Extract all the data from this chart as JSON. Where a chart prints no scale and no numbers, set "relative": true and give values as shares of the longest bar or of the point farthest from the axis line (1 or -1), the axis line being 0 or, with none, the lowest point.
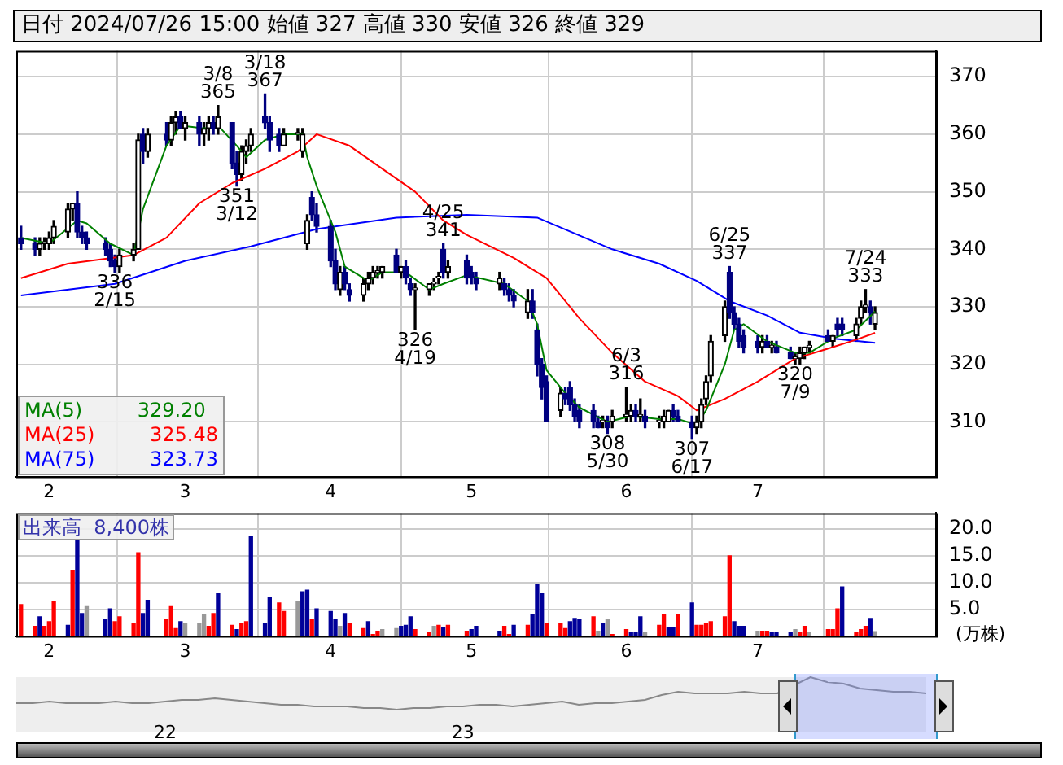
{
  "chart_data": [
    {
      "type": "candlestick",
      "title": "日付 2024/07/26 15:00 始値 327 高値 330 安値 326 終値 329",
      "grid": true,
      "legend": "bottom left",
      "xlim": [
        "2024-01-25",
        "2024-08-08"
      ],
      "colors": [
        "#000080",
        "#000080",
        "#000000",
        "#000000",
        "#000000",
        "#000000",
        "#000000",
        "#000000",
        "#000080",
        "#000080",
        "#000080",
        "#000080",
        "#000080",
        "#000080",
        "#000000",
        "#000000",
        "#000000",
        "#000080",
        "#000000",
        "#000080",
        "#000000",
        "#000000",
        "#000080",
        "#000000",
        "#000080",
        "#000000",
        "#000000",
        "#000080",
        "#000000",
        "#000080",
        "#000080",
        "#000000",
        "#000000",
        "#000000",
        "#000080",
        "#000080",
        "#000080",
        "#000000",
        "#000000",
        "#000000",
        "#000000",
        "#000080",
        "#000080",
        "#000080",
        "#000080",
        "#000000",
        "#000080",
        "#000080",
        "#000000",
        "#000000",
        "#000000",
        "#000000",
        "#000000",
        "#000080",
        "#000000",
        "#000080",
        "#000080",
        "#000000",
        "#000000",
        "#000000",
        "#000000",
        "#000080",
        "#000000",
        "#000080",
        "#000080",
        "#000080",
        "#000000",
        "#000080",
        "#000080",
        "#000080",
        "#000000",
        "#000080",
        "#000080",
        "#000080",
        "#000080",
        "#000000",
        "#000080",
        "#000080",
        "#000080",
        "#000080",
        "#000080",
        "#000080",
        "#000000",
        "#000080",
        "#000000",
        "#000000",
        "#000000",
        "#000080",
        "#000000",
        "#000080",
        "#000000",
        "#000000",
        "#000000",
        "#000080",
        "#000080",
        "#000080",
        "#000000",
        "#000000",
        "#000000",
        "#000000",
        "#000000",
        "#000080",
        "#000080",
        "#000080",
        "#000080",
        "#000080",
        "#000000",
        "#000080",
        "#000000",
        "#000080",
        "#000080",
        "#000000",
        "#000000",
        "#000000",
        "#000000",
        "#000080",
        "#000000",
        "#000080",
        "#000080",
        "#000000",
        "#000000",
        "#000000",
        "#000080",
        "#000000"
      ],
      "x": [
        "2024-01-26",
        "2024-01-29",
        "2024-01-30",
        "2024-01-31",
        "2024-02-01",
        "2024-02-02",
        "2024-02-05",
        "2024-02-06",
        "2024-02-07",
        "2024-02-08",
        "2024-02-09",
        "2024-02-13",
        "2024-02-14",
        "2024-02-15",
        "2024-02-16",
        "2024-02-19",
        "2024-02-20",
        "2024-02-21",
        "2024-02-22",
        "2024-02-26",
        "2024-02-27",
        "2024-02-28",
        "2024-02-29",
        "2024-03-01",
        "2024-03-04",
        "2024-03-05",
        "2024-03-06",
        "2024-03-07",
        "2024-03-08",
        "2024-03-11",
        "2024-03-12",
        "2024-03-13",
        "2024-03-14",
        "2024-03-15",
        "2024-03-18",
        "2024-03-19",
        "2024-03-21",
        "2024-03-22",
        "2024-03-25",
        "2024-03-26",
        "2024-03-27",
        "2024-03-28",
        "2024-03-29",
        "2024-04-01",
        "2024-04-02",
        "2024-04-03",
        "2024-04-04",
        "2024-04-05",
        "2024-04-08",
        "2024-04-09",
        "2024-04-10",
        "2024-04-11",
        "2024-04-12",
        "2024-04-15",
        "2024-04-16",
        "2024-04-17",
        "2024-04-18",
        "2024-04-19",
        "2024-04-22",
        "2024-04-23",
        "2024-04-24",
        "2024-04-25",
        "2024-04-26",
        "2024-04-30",
        "2024-05-01",
        "2024-05-02",
        "2024-05-07",
        "2024-05-08",
        "2024-05-09",
        "2024-05-10",
        "2024-05-13",
        "2024-05-14",
        "2024-05-15",
        "2024-05-16",
        "2024-05-17",
        "2024-05-20",
        "2024-05-21",
        "2024-05-22",
        "2024-05-23",
        "2024-05-24",
        "2024-05-27",
        "2024-05-28",
        "2024-05-29",
        "2024-05-30",
        "2024-05-31",
        "2024-06-03",
        "2024-06-04",
        "2024-06-05",
        "2024-06-06",
        "2024-06-07",
        "2024-06-10",
        "2024-06-11",
        "2024-06-12",
        "2024-06-13",
        "2024-06-14",
        "2024-06-17",
        "2024-06-18",
        "2024-06-19",
        "2024-06-20",
        "2024-06-21",
        "2024-06-24",
        "2024-06-25",
        "2024-06-26",
        "2024-06-27",
        "2024-06-28",
        "2024-07-01",
        "2024-07-02",
        "2024-07-03",
        "2024-07-04",
        "2024-07-05",
        "2024-07-08",
        "2024-07-09",
        "2024-07-10",
        "2024-07-11",
        "2024-07-12",
        "2024-07-16",
        "2024-07-17",
        "2024-07-18",
        "2024-07-19",
        "2024-07-22",
        "2024-07-23",
        "2024-07-24",
        "2024-07-25",
        "2024-07-26"
      ],
      "ohlc": [
        [
          342,
          344,
          340,
          341
        ],
        [
          341,
          342,
          339,
          340
        ],
        [
          340,
          342,
          339,
          341
        ],
        [
          341,
          342,
          340,
          341
        ],
        [
          341,
          343,
          340,
          342
        ],
        [
          342,
          345,
          341,
          344
        ],
        [
          343,
          348,
          342,
          347
        ],
        [
          347,
          348,
          345,
          348
        ],
        [
          348,
          350,
          342,
          343
        ],
        [
          343,
          344,
          341,
          342
        ],
        [
          342,
          343,
          340,
          341
        ],
        [
          341,
          342,
          339,
          340
        ],
        [
          340,
          341,
          337,
          338
        ],
        [
          338,
          339,
          336,
          337
        ],
        [
          337,
          340,
          336,
          339
        ],
        [
          339,
          341,
          338,
          340
        ],
        [
          340,
          360,
          340,
          359
        ],
        [
          360,
          361,
          355,
          357
        ],
        [
          357,
          361,
          356,
          360
        ],
        [
          360,
          362,
          358,
          359
        ],
        [
          359,
          363,
          358,
          362
        ],
        [
          362,
          364,
          360,
          363
        ],
        [
          363,
          364,
          361,
          361
        ],
        [
          361,
          363,
          359,
          362
        ],
        [
          362,
          363,
          358,
          360
        ],
        [
          360,
          362,
          358,
          361
        ],
        [
          361,
          363,
          359,
          362
        ],
        [
          362,
          363,
          360,
          361
        ],
        [
          361,
          365,
          360,
          363
        ],
        [
          362,
          362,
          354,
          355
        ],
        [
          355,
          357,
          351,
          353
        ],
        [
          353,
          358,
          352,
          357
        ],
        [
          357,
          359,
          355,
          358
        ],
        [
          358,
          361,
          357,
          360
        ],
        [
          363,
          367,
          361,
          362
        ],
        [
          362,
          363,
          357,
          359
        ],
        [
          360,
          361,
          357,
          358
        ],
        [
          358,
          361,
          358,
          360
        ],
        [
          360,
          361,
          359,
          360
        ],
        [
          357,
          361,
          356,
          360
        ],
        [
          341,
          346,
          340,
          345
        ],
        [
          349,
          350,
          345,
          346
        ],
        [
          346,
          348,
          343,
          344
        ],
        [
          344,
          345,
          337,
          338
        ],
        [
          338,
          340,
          333,
          334
        ],
        [
          333,
          337,
          332,
          336
        ],
        [
          336,
          337,
          333,
          334
        ],
        [
          333,
          334,
          331,
          332
        ],
        [
          332,
          335,
          331,
          334
        ],
        [
          334,
          336,
          333,
          335
        ],
        [
          335,
          337,
          334,
          336
        ],
        [
          336,
          337,
          335,
          336
        ],
        [
          336,
          337,
          335,
          337
        ],
        [
          339,
          340,
          336,
          336
        ],
        [
          336,
          337,
          335,
          337
        ],
        [
          337,
          338,
          334,
          335
        ],
        [
          334,
          335,
          332,
          333
        ],
        [
          333,
          334,
          326,
          333
        ],
        [
          333,
          334,
          332,
          334
        ],
        [
          334,
          335,
          333,
          334
        ],
        [
          335,
          336,
          334,
          335
        ],
        [
          340,
          341,
          335,
          336
        ],
        [
          336,
          338,
          335,
          337
        ],
        [
          338,
          339,
          334,
          335
        ],
        [
          336,
          337,
          334,
          335
        ],
        [
          335,
          336,
          333,
          334
        ],
        [
          334,
          336,
          333,
          335
        ],
        [
          334,
          335,
          332,
          333
        ],
        [
          333,
          334,
          331,
          332
        ],
        [
          332,
          333,
          330,
          331
        ],
        [
          329,
          333,
          328,
          331
        ],
        [
          331,
          333,
          328,
          329
        ],
        [
          326,
          327,
          318,
          320
        ],
        [
          320,
          321,
          314,
          316
        ],
        [
          317,
          318,
          310,
          310
        ],
        [
          312,
          316,
          311,
          315
        ],
        [
          315,
          316,
          313,
          314
        ],
        [
          316,
          317,
          312,
          313
        ],
        [
          313,
          314,
          310,
          311
        ],
        [
          312,
          313,
          309,
          310
        ],
        [
          312,
          313,
          309,
          310
        ],
        [
          310,
          311,
          309,
          309
        ],
        [
          310,
          311,
          309,
          310
        ],
        [
          310,
          311,
          308,
          309
        ],
        [
          310,
          312,
          309,
          311
        ],
        [
          311,
          316,
          310,
          311
        ],
        [
          311,
          313,
          310,
          312
        ],
        [
          312,
          313,
          310,
          311
        ],
        [
          311,
          314,
          310,
          311
        ],
        [
          311,
          312,
          309,
          310
        ],
        [
          310,
          311,
          309,
          310
        ],
        [
          310,
          312,
          309,
          311
        ],
        [
          310,
          312,
          310,
          312
        ],
        [
          312,
          313,
          310,
          311
        ],
        [
          311,
          312,
          310,
          310
        ],
        [
          310,
          311,
          307,
          309
        ],
        [
          309,
          311,
          308,
          310
        ],
        [
          310,
          314,
          309,
          313
        ],
        [
          314,
          318,
          313,
          317
        ],
        [
          318,
          325,
          317,
          324
        ],
        [
          325,
          331,
          324,
          330
        ],
        [
          336,
          337,
          328,
          329
        ],
        [
          329,
          330,
          326,
          327
        ],
        [
          327,
          328,
          323,
          324
        ],
        [
          325,
          326,
          322,
          323
        ],
        [
          324,
          325,
          322,
          323
        ],
        [
          323,
          325,
          322,
          324
        ],
        [
          324,
          325,
          323,
          323
        ],
        [
          323,
          324,
          322,
          323
        ],
        [
          323,
          324,
          322,
          322
        ],
        [
          322,
          323,
          321,
          321
        ],
        [
          321,
          322,
          320,
          321
        ],
        [
          321,
          323,
          320,
          322
        ],
        [
          322,
          323,
          321,
          323
        ],
        [
          323,
          324,
          322,
          323
        ],
        [
          325,
          326,
          324,
          324
        ],
        [
          324,
          325,
          323,
          325
        ],
        [
          327,
          328,
          325,
          326
        ],
        [
          327,
          328,
          325,
          326
        ],
        [
          325,
          328,
          324,
          327
        ],
        [
          328,
          331,
          327,
          330
        ],
        [
          330,
          333,
          329,
          330
        ],
        [
          330,
          331,
          327,
          329
        ],
        [
          327,
          330,
          326,
          329
        ]
      ],
      "series": [
        {
          "name": "MA(5) 329.20",
          "type": "line",
          "color": "#008000",
          "x": [
            "2024-01-26",
            "2024-02-01",
            "2024-02-07",
            "2024-02-09",
            "2024-02-14",
            "2024-02-19",
            "2024-02-21",
            "2024-02-26",
            "2024-02-29",
            "2024-03-05",
            "2024-03-08",
            "2024-03-12",
            "2024-03-14",
            "2024-03-18",
            "2024-03-22",
            "2024-03-26",
            "2024-03-27",
            "2024-03-29",
            "2024-04-02",
            "2024-04-04",
            "2024-04-09",
            "2024-04-12",
            "2024-04-17",
            "2024-04-22",
            "2024-04-25",
            "2024-04-30",
            "2024-05-08",
            "2024-05-13",
            "2024-05-15",
            "2024-05-17",
            "2024-05-21",
            "2024-05-24",
            "2024-05-30",
            "2024-06-04",
            "2024-06-10",
            "2024-06-14",
            "2024-06-18",
            "2024-06-20",
            "2024-06-24",
            "2024-06-26",
            "2024-06-28",
            "2024-07-03",
            "2024-07-09",
            "2024-07-12",
            "2024-07-17",
            "2024-07-22",
            "2024-07-26"
          ],
          "values": [
            342,
            341,
            345,
            344.5,
            341,
            339,
            347,
            358,
            361.5,
            361,
            361.5,
            358,
            356,
            359,
            360,
            360,
            356,
            351,
            343,
            337,
            334.5,
            336,
            336,
            333,
            334,
            335.5,
            334,
            331,
            327,
            319,
            315,
            312.5,
            310,
            311,
            310.5,
            310.5,
            309.5,
            312,
            320,
            326,
            327,
            324,
            322,
            322,
            324.5,
            326,
            329.2
          ]
        },
        {
          "name": "MA(25) 325.48",
          "type": "line",
          "color": "#ff0000",
          "x": [
            "2024-01-26",
            "2024-02-05",
            "2024-02-19",
            "2024-02-26",
            "2024-03-04",
            "2024-03-11",
            "2024-03-18",
            "2024-03-25",
            "2024-03-29",
            "2024-04-05",
            "2024-04-12",
            "2024-04-19",
            "2024-04-25",
            "2024-04-30",
            "2024-05-10",
            "2024-05-17",
            "2024-05-24",
            "2024-05-31",
            "2024-06-07",
            "2024-06-14",
            "2024-06-18",
            "2024-06-24",
            "2024-07-01",
            "2024-07-09",
            "2024-07-17",
            "2024-07-22",
            "2024-07-26"
          ],
          "values": [
            335,
            337.5,
            339,
            342,
            348,
            351.5,
            354,
            357,
            360,
            358,
            354,
            350,
            345,
            342.5,
            338.5,
            335,
            328,
            322,
            317,
            314.5,
            312,
            314,
            317,
            321,
            323,
            324.3,
            325.48
          ]
        },
        {
          "name": "MA(75) 323.73",
          "type": "line",
          "color": "#0000ff",
          "x": [
            "2024-01-26",
            "2024-02-15",
            "2024-03-01",
            "2024-03-15",
            "2024-03-29",
            "2024-04-15",
            "2024-04-30",
            "2024-05-15",
            "2024-05-31",
            "2024-06-10",
            "2024-06-18",
            "2024-06-25",
            "2024-07-03",
            "2024-07-10",
            "2024-07-17",
            "2024-07-26"
          ],
          "values": [
            332,
            334,
            338,
            340.5,
            343.5,
            345.5,
            346,
            345.5,
            340,
            337.5,
            334.5,
            331,
            328.5,
            325.5,
            324.5,
            323.73
          ]
        }
      ],
      "xticks": [
        {
          "value": "2024-02-01",
          "label": "2"
        },
        {
          "value": "2024-03-01",
          "label": "3"
        },
        {
          "value": "2024-04-01",
          "label": "4"
        },
        {
          "value": "2024-05-01",
          "label": "5"
        },
        {
          "value": "2024-06-03",
          "label": "6"
        },
        {
          "value": "2024-07-01",
          "label": "7"
        }
      ],
      "ylim": [
        300.5,
        374.5
      ],
      "yticks": [
        310,
        320,
        330,
        340,
        350,
        360,
        370
      ],
      "annotations": [
        {
          "text": "3/8\n365",
          "x": "2024-03-08",
          "y": 365
        },
        {
          "text": "3/18\n367",
          "x": "2024-03-18",
          "y": 367
        },
        {
          "text": "351\n3/12",
          "x": "2024-03-12",
          "y": 351
        },
        {
          "text": "336\n2/15",
          "x": "2024-02-15",
          "y": 336
        },
        {
          "text": "326\n4/19",
          "x": "2024-04-19",
          "y": 326
        },
        {
          "text": "4/25\n341",
          "x": "2024-04-25",
          "y": 341
        },
        {
          "text": "6/3\n316",
          "x": "2024-06-03",
          "y": 316
        },
        {
          "text": "308\n5/30",
          "x": "2024-05-30",
          "y": 308
        },
        {
          "text": "307\n6/17",
          "x": "2024-06-17",
          "y": 307
        },
        {
          "text": "6/25\n337",
          "x": "2024-06-25",
          "y": 337
        },
        {
          "text": "320\n7/9",
          "x": "2024-07-09",
          "y": 320
        },
        {
          "text": "7/24\n333",
          "x": "2024-07-24",
          "y": 333
        }
      ]
    },
    {
      "type": "bar",
      "grid": true,
      "ylabel": "(万株)",
      "annotations": [
        "出来高  8,400株"
      ],
      "xlim": [
        "2024-01-25",
        "2024-08-08"
      ],
      "x": [
        "2024-01-26",
        "2024-01-29",
        "2024-01-30",
        "2024-01-31",
        "2024-02-01",
        "2024-02-02",
        "2024-02-05",
        "2024-02-06",
        "2024-02-07",
        "2024-02-08",
        "2024-02-09",
        "2024-02-13",
        "2024-02-14",
        "2024-02-15",
        "2024-02-16",
        "2024-02-19",
        "2024-02-20",
        "2024-02-21",
        "2024-02-22",
        "2024-02-26",
        "2024-02-27",
        "2024-02-28",
        "2024-02-29",
        "2024-03-01",
        "2024-03-04",
        "2024-03-05",
        "2024-03-06",
        "2024-03-07",
        "2024-03-08",
        "2024-03-11",
        "2024-03-12",
        "2024-03-13",
        "2024-03-14",
        "2024-03-15",
        "2024-03-18",
        "2024-03-19",
        "2024-03-21",
        "2024-03-22",
        "2024-03-25",
        "2024-03-26",
        "2024-03-27",
        "2024-03-28",
        "2024-03-29",
        "2024-04-01",
        "2024-04-02",
        "2024-04-03",
        "2024-04-04",
        "2024-04-05",
        "2024-04-08",
        "2024-04-09",
        "2024-04-10",
        "2024-04-11",
        "2024-04-12",
        "2024-04-15",
        "2024-04-16",
        "2024-04-17",
        "2024-04-18",
        "2024-04-19",
        "2024-04-22",
        "2024-04-23",
        "2024-04-24",
        "2024-04-25",
        "2024-04-26",
        "2024-04-30",
        "2024-05-01",
        "2024-05-02",
        "2024-05-07",
        "2024-05-08",
        "2024-05-09",
        "2024-05-10",
        "2024-05-13",
        "2024-05-14",
        "2024-05-15",
        "2024-05-16",
        "2024-05-17",
        "2024-05-20",
        "2024-05-21",
        "2024-05-22",
        "2024-05-23",
        "2024-05-24",
        "2024-05-27",
        "2024-05-28",
        "2024-05-29",
        "2024-05-30",
        "2024-05-31",
        "2024-06-03",
        "2024-06-04",
        "2024-06-05",
        "2024-06-06",
        "2024-06-07",
        "2024-06-10",
        "2024-06-11",
        "2024-06-12",
        "2024-06-13",
        "2024-06-14",
        "2024-06-17",
        "2024-06-18",
        "2024-06-19",
        "2024-06-20",
        "2024-06-21",
        "2024-06-24",
        "2024-06-25",
        "2024-06-26",
        "2024-06-27",
        "2024-06-28",
        "2024-07-01",
        "2024-07-02",
        "2024-07-03",
        "2024-07-04",
        "2024-07-05",
        "2024-07-08",
        "2024-07-09",
        "2024-07-10",
        "2024-07-11",
        "2024-07-12",
        "2024-07-16",
        "2024-07-17",
        "2024-07-18",
        "2024-07-19",
        "2024-07-22",
        "2024-07-23",
        "2024-07-24",
        "2024-07-25",
        "2024-07-26"
      ],
      "values": [
        5.9,
        1.8,
        3.6,
        1.8,
        2.7,
        6.4,
        2,
        12.3,
        18,
        4.2,
        5.5,
        3.1,
        5.1,
        2.7,
        3.6,
        2.4,
        15.6,
        4.2,
        6.7,
        3.1,
        5.5,
        1.4,
        2.7,
        2.4,
        2.4,
        4,
        1.8,
        4.2,
        7.9,
        2,
        1.2,
        2.4,
        2.7,
        18.7,
        2.4,
        7.3,
        6.2,
        4.6,
        6.4,
        8.3,
        8.6,
        3.1,
        5.1,
        4.6,
        3.1,
        1.8,
        4.2,
        2.4,
        1.4,
        2.7,
        0.3,
        0.9,
        1.2,
        1.4,
        1.8,
        2,
        3.6,
        1.2,
        0.6,
        1.8,
        2,
        1.5,
        2,
        0.9,
        1.2,
        1.8,
        0.9,
        1.8,
        0.3,
        2,
        2,
        4,
        9.6,
        7.9,
        2.4,
        2.4,
        1.4,
        2.7,
        3.3,
        3.1,
        3.6,
        0.9,
        2.4,
        3.1,
        0.3,
        1.2,
        0.6,
        0.6,
        3.6,
        0.6,
        2,
        4,
        1.5,
        1.5,
        4,
        6.2,
        2,
        2,
        2.4,
        2.7,
        3.6,
        15,
        2.7,
        1.8,
        1.8,
        0.9,
        0.9,
        0.9,
        0.6,
        0.6,
        0.6,
        1.2,
        0.6,
        1.8,
        0.6,
        1.2,
        1.2,
        5.1,
        9.2,
        0.6,
        1.2,
        1.8,
        3.3,
        0.84
      ],
      "colors": [
        "#ff0000",
        "#ff0000",
        "#000099",
        "#ff0000",
        "#ff0000",
        "#ff0000",
        "#000099",
        "#ff0000",
        "#000099",
        "#000099",
        "#999999",
        "#000099",
        "#000099",
        "#ff0000",
        "#ff0000",
        "#ff0000",
        "#ff0000",
        "#000099",
        "#000099",
        "#ff0000",
        "#ff0000",
        "#ff0000",
        "#000099",
        "#999999",
        "#999999",
        "#999999",
        "#ff0000",
        "#ff0000",
        "#000099",
        "#ff0000",
        "#000099",
        "#ff0000",
        "#ff0000",
        "#000099",
        "#000099",
        "#000099",
        "#ff0000",
        "#ff0000",
        "#999999",
        "#000099",
        "#000099",
        "#ff0000",
        "#000099",
        "#000099",
        "#000099",
        "#999999",
        "#000099",
        "#ff0000",
        "#ff0000",
        "#000099",
        "#ff0000",
        "#ff0000",
        "#999999",
        "#999999",
        "#000099",
        "#000099",
        "#000099",
        "#ff0000",
        "#ff0000",
        "#999999",
        "#ff0000",
        "#000099",
        "#ff0000",
        "#ff0000",
        "#000099",
        "#000099",
        "#000099",
        "#ff0000",
        "#ff0000",
        "#000099",
        "#ff0000",
        "#000099",
        "#000099",
        "#000099",
        "#ff0000",
        "#ff0000",
        "#ff0000",
        "#000099",
        "#000099",
        "#000099",
        "#ff0000",
        "#999999",
        "#000099",
        "#999999",
        "#ff0000",
        "#ff0000",
        "#000099",
        "#000099",
        "#000099",
        "#999999",
        "#ff0000",
        "#ff0000",
        "#000099",
        "#000099",
        "#ff0000",
        "#000099",
        "#ff0000",
        "#ff0000",
        "#ff0000",
        "#ff0000",
        "#ff0000",
        "#ff0000",
        "#000099",
        "#000099",
        "#000099",
        "#999999",
        "#ff0000",
        "#ff0000",
        "#000099",
        "#000099",
        "#000099",
        "#999999",
        "#ff0000",
        "#ff0000",
        "#999999",
        "#ff0000",
        "#ff0000",
        "#ff0000",
        "#000099",
        "#ff0000",
        "#ff0000",
        "#ff0000",
        "#000099",
        "#999999"
      ],
      "xticks": [
        {
          "value": "2024-02-01",
          "label": "2"
        },
        {
          "value": "2024-03-01",
          "label": "3"
        },
        {
          "value": "2024-04-01",
          "label": "4"
        },
        {
          "value": "2024-05-01",
          "label": "5"
        },
        {
          "value": "2024-06-03",
          "label": "6"
        },
        {
          "value": "2024-07-01",
          "label": "7"
        }
      ],
      "ylim": [
        0,
        23
      ],
      "yticks": [
        {
          "value": 5,
          "label": "5.0"
        },
        {
          "value": 10,
          "label": "10.0"
        },
        {
          "value": 15,
          "label": "15.0"
        },
        {
          "value": 20,
          "label": "20.0"
        }
      ]
    },
    {
      "type": "line",
      "relative": true,
      "color": "#888888",
      "tick_labels": "x",
      "categories": [
        null,
        null,
        null,
        null,
        null,
        null,
        null,
        null,
        null,
        "22",
        null,
        null,
        null,
        null,
        null,
        null,
        null,
        null,
        null,
        null,
        null,
        null,
        null,
        null,
        null,
        null,
        null,
        "23",
        null,
        null,
        null,
        null,
        null,
        null,
        null,
        null,
        null,
        null,
        null,
        null,
        null,
        null,
        null,
        null,
        null,
        null,
        null,
        null,
        null,
        null,
        null,
        null,
        null,
        null,
        null,
        null
      ],
      "values": [
        0.2,
        0.2,
        0.25,
        0.2,
        0.2,
        0.2,
        0.25,
        0.2,
        0.2,
        0.25,
        0.3,
        0.3,
        0.35,
        0.3,
        0.25,
        0.2,
        0.15,
        0.15,
        0.1,
        0.1,
        0.1,
        0.05,
        0.05,
        0,
        0.05,
        0.05,
        0.1,
        0.1,
        0.15,
        0.15,
        0.1,
        0.15,
        0.2,
        0.25,
        0.15,
        0.2,
        0.2,
        0.25,
        0.3,
        0.45,
        0.55,
        0.5,
        0.5,
        0.5,
        0.55,
        0.5,
        0.5,
        null,
        1,
        0.85,
        0.8,
        0.65,
        0.6,
        0.55,
        0.55,
        0.5
      ]
    }
  ]
}
